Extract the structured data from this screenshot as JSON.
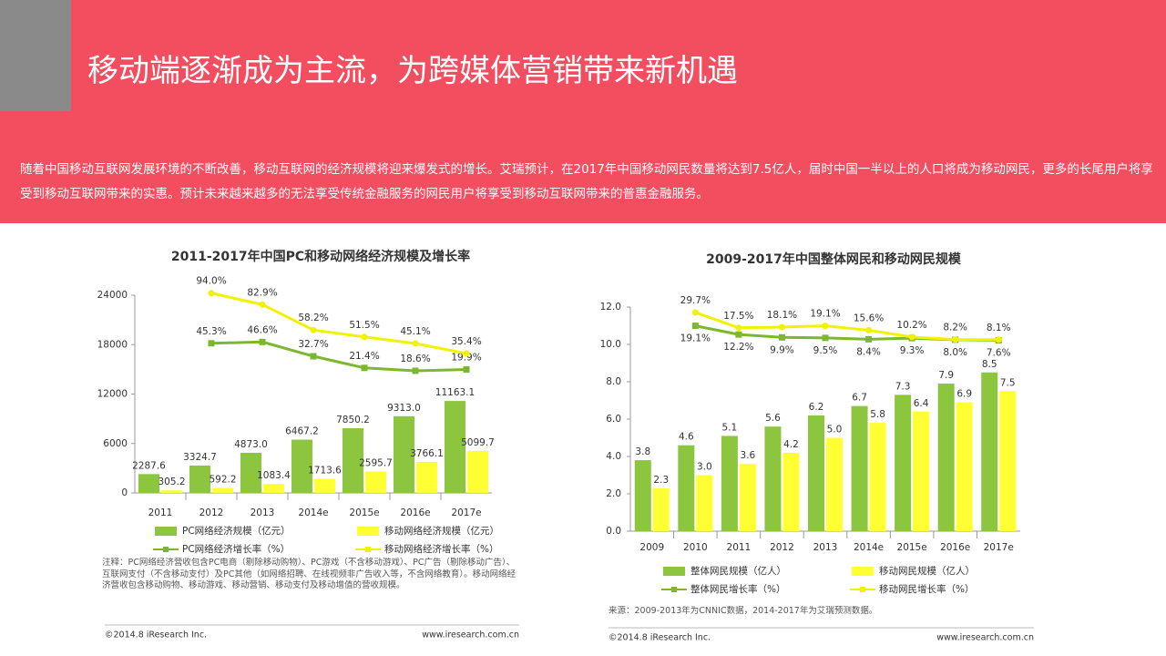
{
  "header": {
    "title": "移动端逐渐成为主流，为跨媒体营销带来新机遇",
    "paragraph": "随着中国移动互联网发展环境的不断改善，移动互联网的经济规模将迎来爆发式的增长。艾瑞预计，在2017年中国移动网民数量将达到7.5亿人，届时中国一半以上的人口将成为移动网民，更多的长尾用户将享受到移动互联网带来的实惠。预计未来越来越多的无法享受传统金融服务的网民用户将享受到移动互联网带来的普惠金融服务。"
  },
  "chart_data": [
    {
      "type": "bar",
      "title": "2011-2017年中国PC和移动网络经济规模及增长率",
      "categories": [
        "2011",
        "2012",
        "2013",
        "2014e",
        "2015e",
        "2016e",
        "2017e"
      ],
      "ylim": [
        0,
        24000
      ],
      "yticks": [
        0,
        6000,
        12000,
        18000,
        24000
      ],
      "y2lim": [
        -100,
        92
      ],
      "series": [
        {
          "name": "PC网络经济规模（亿元）",
          "type": "bar",
          "color": "#8cc63f",
          "values": [
            2287.6,
            3324.7,
            4873.0,
            6467.2,
            7850.2,
            9313.0,
            11163.1
          ],
          "value_labels": [
            "2287.6",
            "3324.7",
            "4873.0",
            "6467.2",
            "7850.2",
            "9313.0",
            "11163.1"
          ]
        },
        {
          "name": "移动网络经济规模（亿元）",
          "type": "bar",
          "color": "#ffff33",
          "values": [
            305.2,
            592.2,
            1083.4,
            1713.6,
            2595.7,
            3766.1,
            5099.7
          ],
          "value_labels": [
            "305.2",
            "592.2",
            "1083.4",
            "1713.6",
            "2595.7",
            "3766.1",
            "5099.7"
          ]
        },
        {
          "name": "PC网络经济增长率（%）",
          "type": "line",
          "axis": "y2",
          "color": "#7cb82f",
          "values": [
            null,
            45.3,
            46.6,
            32.7,
            21.4,
            18.6,
            19.9
          ],
          "value_labels": [
            null,
            "45.3%",
            "46.6%",
            "32.7%",
            "21.4%",
            "18.6%",
            "19.9%"
          ]
        },
        {
          "name": "移动网络经济增长率（%）",
          "type": "line",
          "axis": "y2",
          "color": "#f2f200",
          "values": [
            null,
            94.0,
            82.9,
            58.2,
            51.5,
            45.1,
            35.4
          ],
          "value_labels": [
            null,
            "94.0%",
            "82.9%",
            "58.2%",
            "51.5%",
            "45.1%",
            "35.4%"
          ]
        }
      ],
      "note": "注释：PC网络经济营收包含PC电商（剔除移动购物）、PC游戏（不含移动游戏）、PC广告（剔除移动广告）、互联网支付（不含移动支付）及PC其他（如网络招聘、在线视频非广告收入等，不含网络教育）。移动网络经济营收包含移动购物、移动游戏、移动营销、移动支付及移动增值的营收规模。",
      "copyright": "©2014.8 iResearch Inc.",
      "website": "www.iresearch.com.cn"
    },
    {
      "type": "bar",
      "title": "2009-2017年中国整体网民和移动网民规模",
      "categories": [
        "2009",
        "2010",
        "2011",
        "2012",
        "2013",
        "2014e",
        "2015e",
        "2016e",
        "2017e"
      ],
      "ylim": [
        0,
        12
      ],
      "yticks": [
        {
          "value": 0,
          "label": "0.0"
        },
        {
          "value": 2,
          "label": "2.0"
        },
        {
          "value": 4,
          "label": "4.0"
        },
        {
          "value": 6,
          "label": "6.0"
        },
        {
          "value": 8,
          "label": "8.0"
        },
        {
          "value": 10,
          "label": "10.0"
        },
        {
          "value": 12,
          "label": "12.0"
        }
      ],
      "y2lim": [
        -144,
        34
      ],
      "series": [
        {
          "name": "整体网民规模（亿人）",
          "type": "bar",
          "color": "#8cc63f",
          "values": [
            3.8,
            4.6,
            5.1,
            5.6,
            6.2,
            6.7,
            7.3,
            7.9,
            8.5
          ],
          "value_labels": [
            "3.8",
            "4.6",
            "5.1",
            "5.6",
            "6.2",
            "6.7",
            "7.3",
            "7.9",
            "8.5"
          ]
        },
        {
          "name": "移动网民规模（亿人）",
          "type": "bar",
          "color": "#ffff33",
          "values": [
            2.3,
            3.0,
            3.6,
            4.2,
            5.0,
            5.8,
            6.4,
            6.9,
            7.5
          ],
          "value_labels": [
            "2.3",
            "3.0",
            "3.6",
            "4.2",
            "5.0",
            "5.8",
            "6.4",
            "6.9",
            "7.5"
          ]
        },
        {
          "name": "整体网民增长率（%）",
          "type": "line",
          "axis": "y2",
          "color": "#7cb82f",
          "values": [
            null,
            19.1,
            12.2,
            9.9,
            9.5,
            8.4,
            9.3,
            8.0,
            7.6
          ],
          "value_labels": [
            null,
            "19.1%",
            "12.2%",
            "9.9%",
            "9.5%",
            "8.4%",
            "9.3%",
            "8.0%",
            "7.6%"
          ]
        },
        {
          "name": "移动网民增长率（%）",
          "type": "line",
          "axis": "y2",
          "color": "#f2f200",
          "values": [
            null,
            29.7,
            17.5,
            18.1,
            19.1,
            15.6,
            10.2,
            8.2,
            8.1
          ],
          "value_labels": [
            null,
            "29.7%",
            "17.5%",
            "18.1%",
            "19.1%",
            "15.6%",
            "10.2%",
            "8.2%",
            "8.1%"
          ]
        }
      ],
      "note": "来源：2009-2013年为CNNIC数据，2014-2017年为艾瑞预测数据。",
      "copyright": "©2014.8 iResearch Inc.",
      "website": "www.iresearch.com.cn"
    }
  ]
}
